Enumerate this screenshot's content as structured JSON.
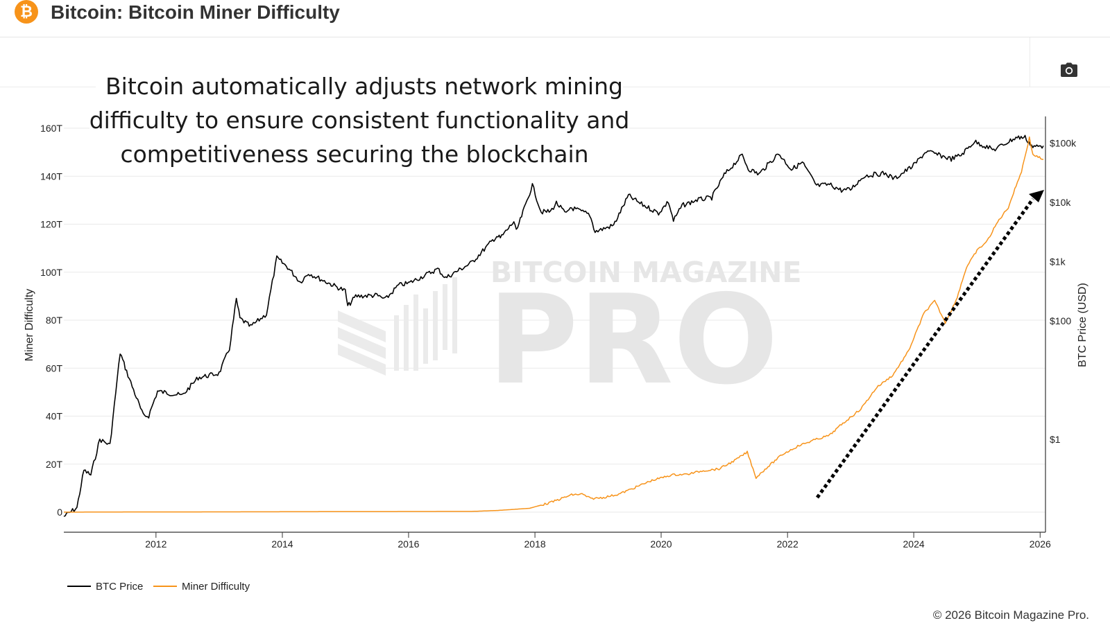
{
  "header": {
    "title": "Bitcoin: Bitcoin Miner Difficulty",
    "logo_glyph": "₿",
    "logo_color": "#f7931a",
    "camera_icon": "camera-icon"
  },
  "annotation": "Bitcoin automatically adjusts network mining difficulty to ensure consistent functionality and competitiveness securing the blockchain",
  "watermark": {
    "line1": "BITCOIN MAGAZINE",
    "line2": "PRO"
  },
  "copyright": "© 2026 Bitcoin Magazine Pro.",
  "chart_data": {
    "type": "line",
    "title": "Bitcoin: Bitcoin Miner Difficulty",
    "xlabel": "",
    "ylabel_left": "Miner Difficulty",
    "ylabel_right": "BTC Price (USD)",
    "x_range": [
      "2010-07-17",
      "2026-02-01"
    ],
    "x_ticks": [
      "2012",
      "2014",
      "2016",
      "2018",
      "2020",
      "2022",
      "2024",
      "2026"
    ],
    "y_left_range": [
      0,
      160
    ],
    "y_left_unit": "T",
    "y_left_ticks": [
      "0",
      "20T",
      "40T",
      "60T",
      "80T",
      "100T",
      "120T",
      "140T",
      "160T"
    ],
    "y_right_scale": "log",
    "y_right_ticks": [
      "$1",
      "$100",
      "$1k",
      "$10k",
      "$100k"
    ],
    "grid": true,
    "legend_position": "bottom-left",
    "series": [
      {
        "name": "BTC Price",
        "axis": "right",
        "color": "#000000",
        "points": [
          [
            "2010-07-17",
            0.05
          ],
          [
            "2010-10-01",
            0.07
          ],
          [
            "2010-11-10",
            0.3
          ],
          [
            "2010-12-20",
            0.25
          ],
          [
            "2011-02-10",
            1.0
          ],
          [
            "2011-04-10",
            0.8
          ],
          [
            "2011-06-08",
            29
          ],
          [
            "2011-07-15",
            14
          ],
          [
            "2011-10-20",
            2.5
          ],
          [
            "2011-11-20",
            2.5
          ],
          [
            "2012-01-10",
            6.5
          ],
          [
            "2012-06-01",
            5.5
          ],
          [
            "2012-09-01",
            11
          ],
          [
            "2012-12-31",
            13
          ],
          [
            "2013-03-01",
            34
          ],
          [
            "2013-04-10",
            230
          ],
          [
            "2013-05-01",
            110
          ],
          [
            "2013-07-01",
            80
          ],
          [
            "2013-10-01",
            130
          ],
          [
            "2013-11-30",
            1150
          ],
          [
            "2014-02-01",
            800
          ],
          [
            "2014-04-15",
            450
          ],
          [
            "2014-06-01",
            640
          ],
          [
            "2014-09-01",
            470
          ],
          [
            "2014-12-31",
            320
          ],
          [
            "2015-01-14",
            175
          ],
          [
            "2015-03-01",
            260
          ],
          [
            "2015-07-01",
            270
          ],
          [
            "2015-08-20",
            230
          ],
          [
            "2015-11-04",
            400
          ],
          [
            "2015-12-31",
            430
          ],
          [
            "2016-06-18",
            750
          ],
          [
            "2016-08-02",
            530
          ],
          [
            "2016-12-31",
            960
          ],
          [
            "2017-05-25",
            2700
          ],
          [
            "2017-06-15",
            2500
          ],
          [
            "2017-09-01",
            4700
          ],
          [
            "2017-09-15",
            3200
          ],
          [
            "2017-12-17",
            19500
          ],
          [
            "2018-02-06",
            6900
          ],
          [
            "2018-04-01",
            7000
          ],
          [
            "2018-05-05",
            9800
          ],
          [
            "2018-07-01",
            6300
          ],
          [
            "2018-07-25",
            8200
          ],
          [
            "2018-11-14",
            6200
          ],
          [
            "2018-12-15",
            3200
          ],
          [
            "2019-04-01",
            4100
          ],
          [
            "2019-06-26",
            13000
          ],
          [
            "2019-09-01",
            9600
          ],
          [
            "2019-12-17",
            6600
          ],
          [
            "2020-02-12",
            10300
          ],
          [
            "2020-03-12",
            4900
          ],
          [
            "2020-05-01",
            8800
          ],
          [
            "2020-07-27",
            11000
          ],
          [
            "2020-10-20",
            12000
          ],
          [
            "2020-12-31",
            29000
          ],
          [
            "2021-04-14",
            63000
          ],
          [
            "2021-05-19",
            37000
          ],
          [
            "2021-07-20",
            30000
          ],
          [
            "2021-11-10",
            67000
          ],
          [
            "2022-01-24",
            36000
          ],
          [
            "2022-03-28",
            47000
          ],
          [
            "2022-06-18",
            19000
          ],
          [
            "2022-09-01",
            20000
          ],
          [
            "2022-11-09",
            16000
          ],
          [
            "2022-12-31",
            16500
          ],
          [
            "2023-03-20",
            28000
          ],
          [
            "2023-07-14",
            31000
          ],
          [
            "2023-09-11",
            25000
          ],
          [
            "2023-12-31",
            42000
          ],
          [
            "2024-03-14",
            73000
          ],
          [
            "2024-08-05",
            54000
          ],
          [
            "2024-10-01",
            63000
          ],
          [
            "2024-12-17",
            106000
          ],
          [
            "2025-04-08",
            77000
          ],
          [
            "2025-08-14",
            124000
          ],
          [
            "2025-10-06",
            125000
          ],
          [
            "2025-11-20",
            86000
          ],
          [
            "2026-01-20",
            90000
          ]
        ]
      },
      {
        "name": "Miner Difficulty",
        "axis": "left",
        "color": "#f7931a",
        "points": [
          [
            "2010-07-17",
            0
          ],
          [
            "2016-12-31",
            0.3
          ],
          [
            "2017-06-01",
            0.7
          ],
          [
            "2017-12-01",
            1.6
          ],
          [
            "2018-04-01",
            4
          ],
          [
            "2018-08-01",
            7.2
          ],
          [
            "2018-10-01",
            7.5
          ],
          [
            "2018-11-20",
            5.6
          ],
          [
            "2019-02-01",
            6.1
          ],
          [
            "2019-05-01",
            7.5
          ],
          [
            "2019-08-01",
            10.2
          ],
          [
            "2019-11-01",
            13
          ],
          [
            "2020-03-01",
            15.5
          ],
          [
            "2020-06-01",
            15.8
          ],
          [
            "2020-09-01",
            17.3
          ],
          [
            "2020-12-01",
            18
          ],
          [
            "2021-03-01",
            21.5
          ],
          [
            "2021-05-13",
            25
          ],
          [
            "2021-07-03",
            14.4
          ],
          [
            "2021-09-01",
            18.4
          ],
          [
            "2021-12-01",
            24
          ],
          [
            "2022-03-01",
            27.5
          ],
          [
            "2022-06-01",
            30
          ],
          [
            "2022-09-01",
            32
          ],
          [
            "2022-11-01",
            36
          ],
          [
            "2023-03-01",
            43
          ],
          [
            "2023-06-01",
            52
          ],
          [
            "2023-09-01",
            57
          ],
          [
            "2023-12-01",
            67
          ],
          [
            "2024-03-01",
            83
          ],
          [
            "2024-05-01",
            88
          ],
          [
            "2024-07-01",
            79
          ],
          [
            "2024-09-01",
            88
          ],
          [
            "2024-11-01",
            102
          ],
          [
            "2025-01-01",
            109
          ],
          [
            "2025-03-01",
            113
          ],
          [
            "2025-05-01",
            121
          ],
          [
            "2025-07-01",
            127
          ],
          [
            "2025-08-15",
            136
          ],
          [
            "2025-09-15",
            142
          ],
          [
            "2025-10-31",
            156
          ],
          [
            "2025-11-20",
            149
          ],
          [
            "2026-01-20",
            147
          ]
        ]
      }
    ]
  },
  "legend": [
    {
      "label": "BTC Price",
      "color": "#000000"
    },
    {
      "label": "Miner Difficulty",
      "color": "#f7931a"
    }
  ]
}
